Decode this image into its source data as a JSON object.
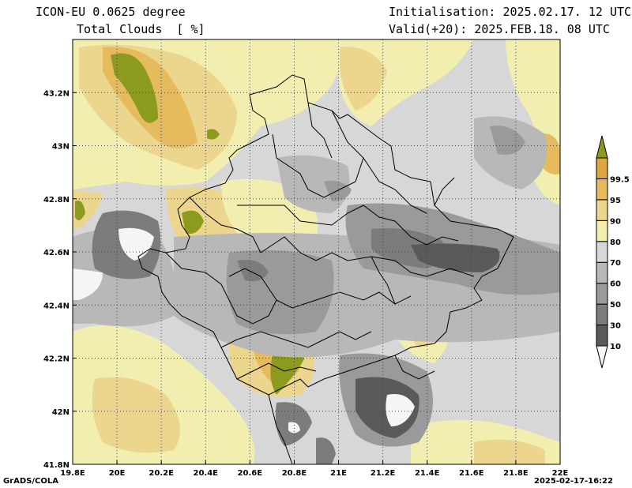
{
  "header": {
    "model": "ICON-EU 0.0625 degree",
    "field": "Total Clouds  [ %]",
    "init": "Initialisation: 2025.02.17. 12 UTC",
    "valid": "Valid(+20): 2025.FEB.18. 08 UTC"
  },
  "footer": {
    "credit": "GrADS/COLA",
    "timestamp": "2025-02-17-16:22"
  },
  "map": {
    "lon_range": [
      19.8,
      22.0
    ],
    "lat_range": [
      41.8,
      43.4
    ],
    "lon_ticks": [
      "19.8E",
      "20E",
      "20.2E",
      "20.4E",
      "20.6E",
      "20.8E",
      "21E",
      "21.2E",
      "21.4E",
      "21.6E",
      "21.8E",
      "22E"
    ],
    "lat_ticks": [
      "41.8N",
      "42N",
      "42.2N",
      "42.4N",
      "42.6N",
      "42.8N",
      "43N",
      "43.2N"
    ],
    "grid": "dotted"
  },
  "colorbar": {
    "levels": [
      "10",
      "30",
      "50",
      "60",
      "70",
      "80",
      "90",
      "95",
      "99.5"
    ],
    "colors": [
      "#f5f5f5",
      "#5a5a5a",
      "#7c7c7c",
      "#9a9a9a",
      "#b8b8b8",
      "#d7d7d7",
      "#f2eeb0",
      "#ecd58c",
      "#e5bb5e",
      "#dca73e",
      "#8c9a1e"
    ]
  }
}
